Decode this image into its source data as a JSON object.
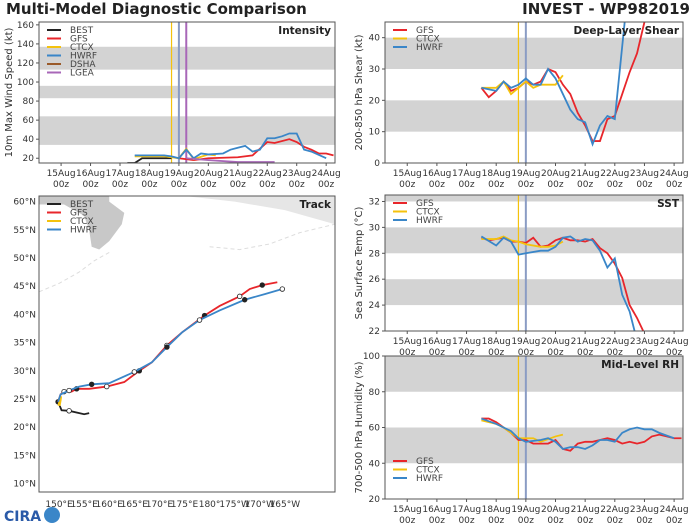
{
  "title_left": "Multi-Model Diagnostic Comparison",
  "title_right": "INVEST - WP982019",
  "logo_text": "CIRA",
  "colors": {
    "BEST": "#222222",
    "GFS": "#e8262b",
    "CTCX": "#f4c20d",
    "HWRF": "#3a86c8",
    "DSHA": "#9a5a2a",
    "LGEA": "#a867b8",
    "band": "#d3d3d3",
    "land": "#c8c8c8"
  },
  "time_ticks": [
    "15Aug 00z",
    "16Aug 00z",
    "17Aug 00z",
    "18Aug 00z",
    "19Aug 00z",
    "20Aug 00z",
    "21Aug 00z",
    "22Aug 00z",
    "23Aug 00z",
    "24Aug 00z"
  ],
  "chart_data": [
    {
      "type": "line",
      "title": "Intensity",
      "ylabel": "10m Max Wind Speed (kt)",
      "ylim": [
        15,
        163
      ],
      "yticks": [
        20,
        40,
        60,
        80,
        100,
        120,
        140,
        160
      ],
      "bands": [
        [
          34,
          64
        ],
        [
          83,
          96
        ],
        [
          113,
          137
        ]
      ],
      "legend": [
        "BEST",
        "GFS",
        "CTCX",
        "HWRF",
        "DSHA",
        "LGEA"
      ],
      "vlines": [
        {
          "model": "CTCX",
          "t": "18Aug 18z"
        },
        {
          "model": "HWRF",
          "t": "19Aug 00z"
        },
        {
          "model": "LGEA",
          "t": "19Aug 06z"
        }
      ],
      "series": [
        {
          "name": "BEST",
          "t": [
            "17Aug 06z",
            "17Aug 12z",
            "17Aug 18z",
            "18Aug 00z",
            "18Aug 06z",
            "18Aug 12z",
            "18Aug 18z"
          ],
          "v": [
            15,
            15,
            20,
            20,
            20,
            20,
            20
          ]
        },
        {
          "name": "GFS",
          "t": [
            "19Aug 00z",
            "19Aug 12z",
            "20Aug 00z",
            "21Aug 00z",
            "21Aug 12z",
            "22Aug 00z",
            "22Aug 06z",
            "22Aug 18z",
            "23Aug 00z",
            "23Aug 06z",
            "23Aug 12z",
            "23Aug 18z",
            "24Aug 00z",
            "24Aug 06z"
          ],
          "v": [
            20,
            18,
            20,
            21,
            23,
            37,
            36,
            40,
            37,
            32,
            29,
            25,
            25,
            23
          ]
        },
        {
          "name": "CTCX",
          "t": [
            "17Aug 12z",
            "18Aug 12z",
            "18Aug 18z",
            "19Aug 00z",
            "19Aug 06z",
            "19Aug 12z",
            "20Aug 00z",
            "20Aug 06z"
          ],
          "v": [
            22,
            22,
            21,
            20,
            30,
            19,
            24,
            23
          ]
        },
        {
          "name": "HWRF",
          "t": [
            "17Aug 12z",
            "18Aug 00z",
            "18Aug 12z",
            "18Aug 18z",
            "19Aug 00z",
            "19Aug 06z",
            "19Aug 12z",
            "19Aug 18z",
            "20Aug 00z",
            "20Aug 12z",
            "20Aug 18z",
            "21Aug 00z",
            "21Aug 06z",
            "21Aug 12z",
            "21Aug 18z",
            "22Aug 00z",
            "22Aug 06z",
            "22Aug 12z",
            "22Aug 18z",
            "23Aug 00z",
            "23Aug 06z",
            "23Aug 12z",
            "24Aug 00z"
          ],
          "v": [
            23,
            23,
            23,
            22,
            20,
            29,
            20,
            25,
            24,
            25,
            29,
            31,
            33,
            27,
            29,
            41,
            41,
            43,
            46,
            46,
            29,
            27,
            20
          ]
        },
        {
          "name": "LGEA",
          "t": [
            "19Aug 06z",
            "20Aug 00z",
            "21Aug 00z",
            "22Aug 06z"
          ],
          "v": [
            20,
            18,
            16,
            16
          ]
        }
      ]
    },
    {
      "type": "line",
      "title": "Track",
      "ylim": [
        8.5,
        61
      ],
      "xlim": [
        146,
        205
      ],
      "yticks": [
        "10°N",
        "15°N",
        "20°N",
        "25°N",
        "30°N",
        "35°N",
        "40°N",
        "45°N",
        "50°N",
        "55°N",
        "60°N"
      ],
      "xticks": [
        "150°E",
        "155°E",
        "160°E",
        "165°E",
        "170°E",
        "175°E",
        "180°",
        "175°W",
        "170°W",
        "165°W"
      ],
      "legend": [
        "BEST",
        "GFS",
        "CTCX",
        "HWRF"
      ],
      "series": [
        {
          "name": "BEST",
          "lon": [
            156,
            155,
            152,
            150.5,
            149.8
          ],
          "lat": [
            22.5,
            22.3,
            22.9,
            23.0,
            24.5
          ]
        },
        {
          "name": "GFS",
          "lon": [
            149.8,
            150.3,
            151,
            152.5,
            153.5,
            156,
            159.5,
            163,
            166,
            168.5,
            171.5,
            174.5,
            179,
            182,
            186,
            188,
            190.5,
            193.5
          ],
          "lat": [
            24.5,
            25.8,
            26.3,
            26.3,
            26.8,
            26.8,
            27.2,
            28,
            30,
            31.5,
            34.5,
            36.8,
            39.8,
            41.5,
            43.2,
            44.5,
            45.2,
            45.7
          ]
        },
        {
          "name": "CTCX",
          "lon": [
            150,
            150.2,
            150.3
          ],
          "lat": [
            23.8,
            24.8,
            25.5
          ]
        },
        {
          "name": "HWRF",
          "lon": [
            149.8,
            150.3,
            152,
            154,
            156.5,
            160,
            165,
            168.5,
            171.5,
            174.5,
            178,
            182,
            187,
            191,
            194.5
          ],
          "lat": [
            24.5,
            25.8,
            26.5,
            27.2,
            27.6,
            27.8,
            29.8,
            31.5,
            34.2,
            36.8,
            39,
            40.7,
            42.6,
            43.6,
            44.5
          ]
        }
      ]
    },
    {
      "type": "line",
      "title": "Deep-Layer Shear",
      "ylabel": "200-850 hPa Shear (kt)",
      "ylim": [
        0,
        45
      ],
      "yticks": [
        0,
        10,
        20,
        30,
        40
      ],
      "bands": [
        [
          10,
          20
        ],
        [
          30,
          40
        ]
      ],
      "legend": [
        "GFS",
        "CTCX",
        "HWRF"
      ],
      "vlines": [
        {
          "model": "CTCX",
          "t": "18Aug 18z"
        },
        {
          "model": "HWRF",
          "t": "19Aug 00z"
        }
      ],
      "series": [
        {
          "name": "GFS",
          "t": [
            "17Aug 12z",
            "17Aug 18z",
            "18Aug 00z",
            "18Aug 06z",
            "18Aug 12z",
            "18Aug 18z",
            "19Aug 00z",
            "19Aug 06z",
            "19Aug 12z",
            "19Aug 18z",
            "20Aug 00z",
            "20Aug 06z",
            "20Aug 12z",
            "20Aug 18z",
            "21Aug 00z",
            "21Aug 06z",
            "21Aug 12z",
            "21Aug 18z",
            "22Aug 00z",
            "22Aug 06z",
            "22Aug 12z",
            "22Aug 18z",
            "23Aug 00z"
          ],
          "v": [
            24,
            21,
            23,
            26,
            23,
            24,
            26,
            25,
            26,
            30,
            29,
            25,
            22,
            16,
            12,
            7,
            7,
            14,
            15,
            22,
            29,
            35,
            45
          ]
        },
        {
          "name": "CTCX",
          "t": [
            "17Aug 12z",
            "18Aug 00z",
            "18Aug 06z",
            "18Aug 12z",
            "18Aug 18z",
            "19Aug 00z",
            "19Aug 06z",
            "19Aug 12z",
            "20Aug 00z",
            "20Aug 06z"
          ],
          "v": [
            24,
            24,
            26,
            22,
            24,
            26,
            24,
            25,
            25,
            28
          ]
        },
        {
          "name": "HWRF",
          "t": [
            "17Aug 12z",
            "18Aug 00z",
            "18Aug 06z",
            "18Aug 12z",
            "18Aug 18z",
            "19Aug 00z",
            "19Aug 06z",
            "19Aug 12z",
            "19Aug 18z",
            "20Aug 00z",
            "20Aug 06z",
            "20Aug 12z",
            "20Aug 18z",
            "21Aug 00z",
            "21Aug 06z",
            "21Aug 12z",
            "21Aug 18z",
            "22Aug 00z",
            "22Aug 08z"
          ],
          "v": [
            24,
            23,
            26,
            24,
            25,
            27,
            25,
            25,
            30,
            27,
            22,
            17,
            14,
            13,
            6,
            12,
            15,
            14,
            45
          ]
        }
      ]
    },
    {
      "type": "line",
      "title": "SST",
      "ylabel": "Sea Surface Temp (°C)",
      "ylim": [
        22,
        32.5
      ],
      "yticks": [
        22,
        24,
        26,
        28,
        30,
        32
      ],
      "bands": [
        [
          24,
          26
        ],
        [
          28,
          30
        ],
        [
          32,
          33
        ]
      ],
      "legend": [
        "GFS",
        "CTCX",
        "HWRF"
      ],
      "vlines": [
        {
          "model": "CTCX",
          "t": "18Aug 18z"
        },
        {
          "model": "HWRF",
          "t": "19Aug 00z"
        }
      ],
      "series": [
        {
          "name": "GFS",
          "t": [
            "17Aug 12z",
            "17Aug 18z",
            "18Aug 00z",
            "18Aug 06z",
            "18Aug 12z",
            "18Aug 18z",
            "19Aug 00z",
            "19Aug 06z",
            "19Aug 12z",
            "19Aug 18z",
            "20Aug 00z",
            "20Aug 06z",
            "20Aug 12z",
            "20Aug 18z",
            "21Aug 00z",
            "21Aug 06z",
            "21Aug 12z",
            "21Aug 18z",
            "22Aug 00z",
            "22Aug 06z",
            "22Aug 12z",
            "22Aug 18z",
            "22Aug 23z"
          ],
          "v": [
            29.2,
            29.0,
            29.1,
            29.2,
            28.9,
            28.9,
            28.8,
            29.2,
            28.5,
            28.6,
            29.0,
            29.2,
            29.0,
            29.0,
            28.9,
            29.1,
            28.4,
            28.0,
            27.2,
            26.1,
            24.0,
            23.0,
            22.0
          ]
        },
        {
          "name": "CTCX",
          "t": [
            "17Aug 12z",
            "18Aug 00z",
            "18Aug 06z",
            "18Aug 12z",
            "18Aug 18z",
            "19Aug 00z",
            "19Aug 12z",
            "19Aug 18z",
            "20Aug 00z",
            "20Aug 06z"
          ],
          "v": [
            29.1,
            29.1,
            29.3,
            29.0,
            28.9,
            28.7,
            28.5,
            28.5,
            28.6,
            28.9
          ]
        },
        {
          "name": "HWRF",
          "t": [
            "17Aug 12z",
            "18Aug 00z",
            "18Aug 06z",
            "18Aug 12z",
            "18Aug 18z",
            "19Aug 00z",
            "19Aug 12z",
            "19Aug 18z",
            "20Aug 00z",
            "20Aug 06z",
            "20Aug 12z",
            "20Aug 18z",
            "21Aug 00z",
            "21Aug 06z",
            "21Aug 12z",
            "21Aug 18z",
            "22Aug 00z",
            "22Aug 06z",
            "22Aug 12z",
            "22Aug 16z"
          ],
          "v": [
            29.3,
            28.6,
            29.2,
            28.9,
            27.9,
            28.0,
            28.2,
            28.2,
            28.5,
            29.2,
            29.3,
            28.9,
            29.1,
            29.0,
            28.2,
            26.9,
            27.6,
            24.8,
            23.5,
            22.0
          ]
        }
      ]
    },
    {
      "type": "line",
      "title": "Mid-Level RH",
      "ylabel": "700-500 hPa Humidity (%)",
      "ylim": [
        20,
        100
      ],
      "yticks": [
        20,
        40,
        60,
        80,
        100
      ],
      "bands": [
        [
          40,
          60
        ],
        [
          80,
          100
        ]
      ],
      "legend": [
        "GFS",
        "CTCX",
        "HWRF"
      ],
      "vlines": [
        {
          "model": "CTCX",
          "t": "18Aug 18z"
        },
        {
          "model": "HWRF",
          "t": "19Aug 00z"
        }
      ],
      "series": [
        {
          "name": "GFS",
          "t": [
            "17Aug 12z",
            "17Aug 18z",
            "18Aug 00z",
            "18Aug 06z",
            "18Aug 12z",
            "18Aug 18z",
            "19Aug 00z",
            "19Aug 06z",
            "19Aug 12z",
            "19Aug 18z",
            "20Aug 00z",
            "20Aug 06z",
            "20Aug 12z",
            "20Aug 18z",
            "21Aug 00z",
            "21Aug 06z",
            "21Aug 12z",
            "21Aug 18z",
            "22Aug 00z",
            "22Aug 06z",
            "22Aug 12z",
            "22Aug 18z",
            "23Aug 00z",
            "23Aug 06z",
            "23Aug 12z",
            "23Aug 18z",
            "24Aug 00z",
            "24Aug 06z"
          ],
          "v": [
            65,
            65,
            63,
            60,
            57,
            53,
            53,
            51,
            51,
            51,
            53,
            48,
            47,
            51,
            52,
            52,
            53,
            54,
            53,
            51,
            52,
            51,
            52,
            55,
            56,
            55,
            54,
            54
          ]
        },
        {
          "name": "CTCX",
          "t": [
            "17Aug 12z",
            "18Aug 00z",
            "18Aug 06z",
            "18Aug 18z",
            "19Aug 00z",
            "19Aug 06z",
            "19Aug 12z",
            "20Aug 00z",
            "20Aug 06z"
          ],
          "v": [
            64,
            62,
            60,
            54,
            54,
            54,
            52,
            55,
            56
          ]
        },
        {
          "name": "HWRF",
          "t": [
            "17Aug 12z",
            "18Aug 00z",
            "18Aug 06z",
            "18Aug 12z",
            "18Aug 18z",
            "19Aug 00z",
            "19Aug 12z",
            "19Aug 18z",
            "20Aug 00z",
            "20Aug 06z",
            "20Aug 12z",
            "20Aug 18z",
            "21Aug 00z",
            "21Aug 06z",
            "21Aug 12z",
            "21Aug 18z",
            "22Aug 00z",
            "22Aug 06z",
            "22Aug 12z",
            "22Aug 18z",
            "23Aug 00z",
            "23Aug 06z",
            "23Aug 12z",
            "24Aug 00z"
          ],
          "v": [
            65,
            62,
            60,
            58,
            54,
            52,
            53,
            54,
            52,
            48,
            49,
            49,
            48,
            50,
            53,
            53,
            52,
            57,
            59,
            60,
            59,
            59,
            57,
            54
          ]
        }
      ]
    }
  ]
}
